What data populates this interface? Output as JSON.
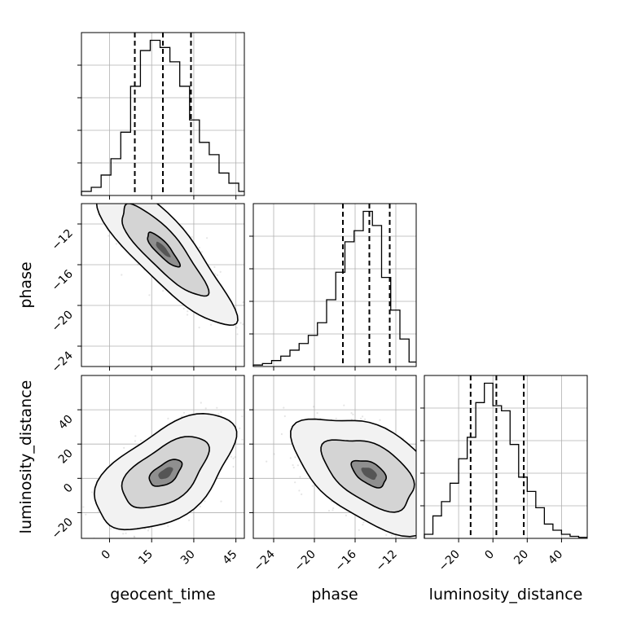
{
  "chart_data": {
    "type": "corner",
    "parameters": [
      "geocent_time",
      "phase",
      "luminosity_distance"
    ],
    "grid": true,
    "diagonal": [
      {
        "name": "geocent_time",
        "range": [
          -10,
          48
        ],
        "ticks": [
          0,
          15,
          30,
          45
        ],
        "bin_edges": [
          -10,
          -6.5,
          -3,
          0.5,
          4,
          7.5,
          11,
          14.5,
          18,
          21.5,
          25,
          28.5,
          32,
          35.5,
          39,
          42.5,
          46,
          48
        ],
        "counts": [
          0.04,
          0.08,
          0.2,
          0.36,
          0.62,
          1.07,
          1.42,
          1.52,
          1.45,
          1.31,
          1.07,
          0.74,
          0.52,
          0.4,
          0.22,
          0.12,
          0.04
        ],
        "quantiles": [
          9,
          19,
          29
        ]
      },
      {
        "name": "phase",
        "range": [
          -26,
          -10
        ],
        "ticks": [
          -24,
          -20,
          -16,
          -12
        ],
        "bin_edges": [
          -26,
          -25.1,
          -24.2,
          -23.3,
          -22.4,
          -21.5,
          -20.6,
          -19.7,
          -18.8,
          -17.9,
          -17,
          -16.1,
          -15.2,
          -14.3,
          -13.4,
          -12.5,
          -11.6,
          -10.7,
          -10
        ],
        "counts": [
          0.02,
          0.04,
          0.08,
          0.14,
          0.22,
          0.31,
          0.42,
          0.59,
          0.9,
          1.27,
          1.68,
          1.83,
          2.09,
          1.9,
          1.2,
          0.76,
          0.37,
          0.06
        ],
        "quantiles": [
          -17.2,
          -14.6,
          -12.6
        ]
      },
      {
        "name": "luminosity_distance",
        "range": [
          -40,
          55
        ],
        "ticks": [
          -20,
          0,
          20,
          40
        ],
        "bin_edges": [
          -40,
          -35,
          -30,
          -25,
          -20,
          -15,
          -10,
          -5,
          0,
          5,
          10,
          15,
          20,
          25,
          30,
          35,
          40,
          45,
          50,
          55
        ],
        "counts": [
          0.04,
          0.22,
          0.36,
          0.54,
          0.78,
          0.99,
          1.33,
          1.52,
          1.3,
          1.25,
          0.92,
          0.6,
          0.46,
          0.3,
          0.14,
          0.08,
          0.04,
          0.02,
          0.01
        ],
        "quantiles": [
          -13,
          2,
          18
        ]
      }
    ],
    "pairs": [
      {
        "x": "geocent_time",
        "y": "phase",
        "xlim": [
          -10,
          48
        ],
        "ylim": [
          -26,
          -10
        ],
        "yticks": [
          -24,
          -20,
          -16,
          -12
        ],
        "center": [
          19,
          -14.5
        ],
        "sigma_x": 9.5,
        "sigma_y": 2.8,
        "corr": -0.85,
        "levels": [
          0.6,
          1.6,
          2.6
        ]
      },
      {
        "x": "geocent_time",
        "y": "luminosity_distance",
        "xlim": [
          -10,
          48
        ],
        "ylim": [
          -35,
          60
        ],
        "xticks": [
          0,
          15,
          30,
          45
        ],
        "yticks": [
          -20,
          0,
          20,
          40
        ],
        "center": [
          20,
          3
        ],
        "sigma_x": 9.5,
        "sigma_y": 13,
        "corr": 0.55,
        "levels": [
          0.6,
          1.6,
          2.6
        ]
      },
      {
        "x": "phase",
        "y": "luminosity_distance",
        "xlim": [
          -26,
          -10
        ],
        "ylim": [
          -35,
          60
        ],
        "xticks": [
          -24,
          -20,
          -16,
          -12
        ],
        "center": [
          -14.6,
          3
        ],
        "sigma_x": 2.8,
        "sigma_y": 13,
        "corr": -0.5,
        "levels": [
          0.6,
          1.6,
          2.6
        ]
      }
    ]
  }
}
